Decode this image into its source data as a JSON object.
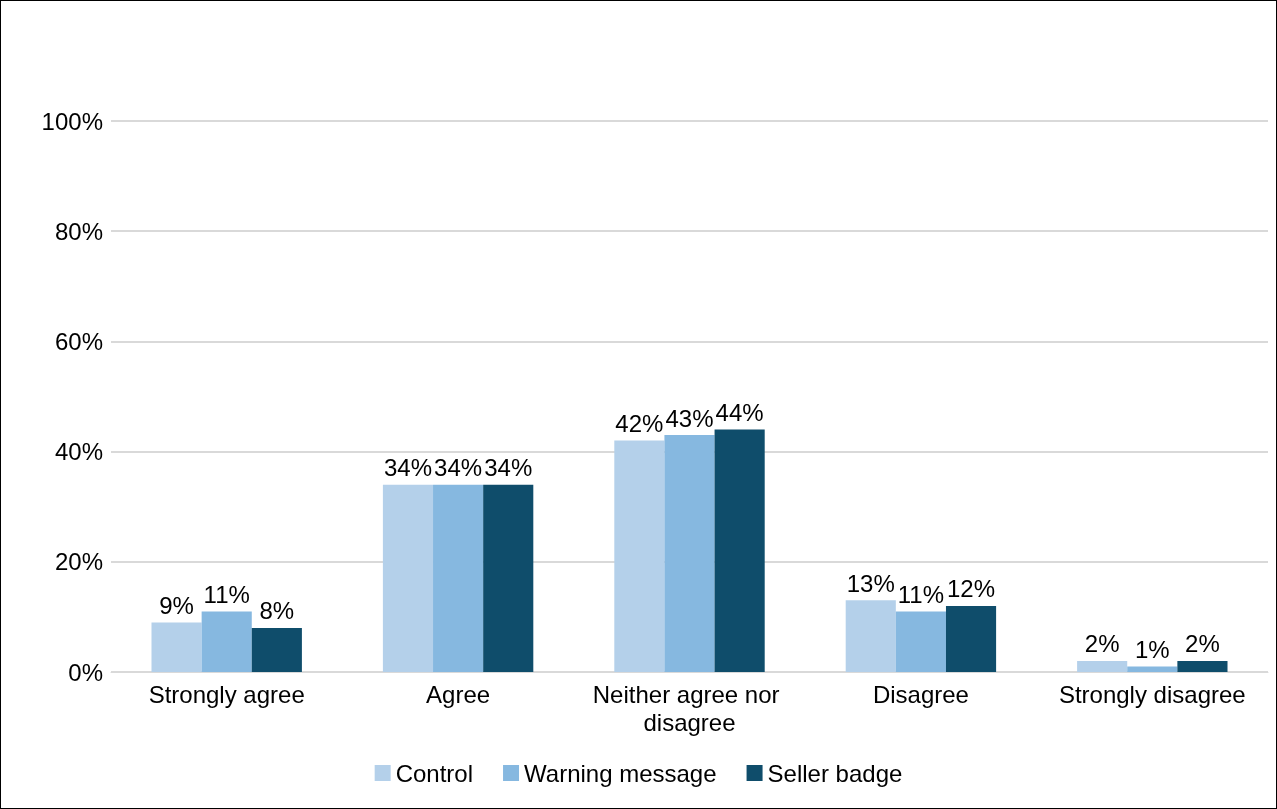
{
  "chart_data": {
    "type": "bar",
    "categories": [
      "Strongly agree",
      "Agree",
      "Neither agree nor disagree",
      "Disagree",
      "Strongly disagree"
    ],
    "series": [
      {
        "name": "Control",
        "color": "#b4d0ea",
        "values": [
          9,
          34,
          42,
          13,
          2
        ]
      },
      {
        "name": "Warning message",
        "color": "#86b8e0",
        "values": [
          11,
          34,
          43,
          11,
          1
        ]
      },
      {
        "name": "Seller badge",
        "color": "#0f4d6b",
        "values": [
          8,
          34,
          44,
          12,
          2
        ]
      }
    ],
    "ylim": [
      0,
      100
    ],
    "yticks": [
      {
        "value": 0,
        "label": "0%"
      },
      {
        "value": 20,
        "label": "20%"
      },
      {
        "value": 40,
        "label": "40%"
      },
      {
        "value": 60,
        "label": "60%"
      },
      {
        "value": 80,
        "label": "80%"
      },
      {
        "value": 100,
        "label": "100%"
      }
    ],
    "value_labels": [
      [
        "9%",
        "34%",
        "42%",
        "13%",
        "2%"
      ],
      [
        "11%",
        "34%",
        "43%",
        "11%",
        "1%"
      ],
      [
        "8%",
        "34%",
        "44%",
        "12%",
        "2%"
      ]
    ],
    "grid": "y",
    "legend": "bottom"
  }
}
